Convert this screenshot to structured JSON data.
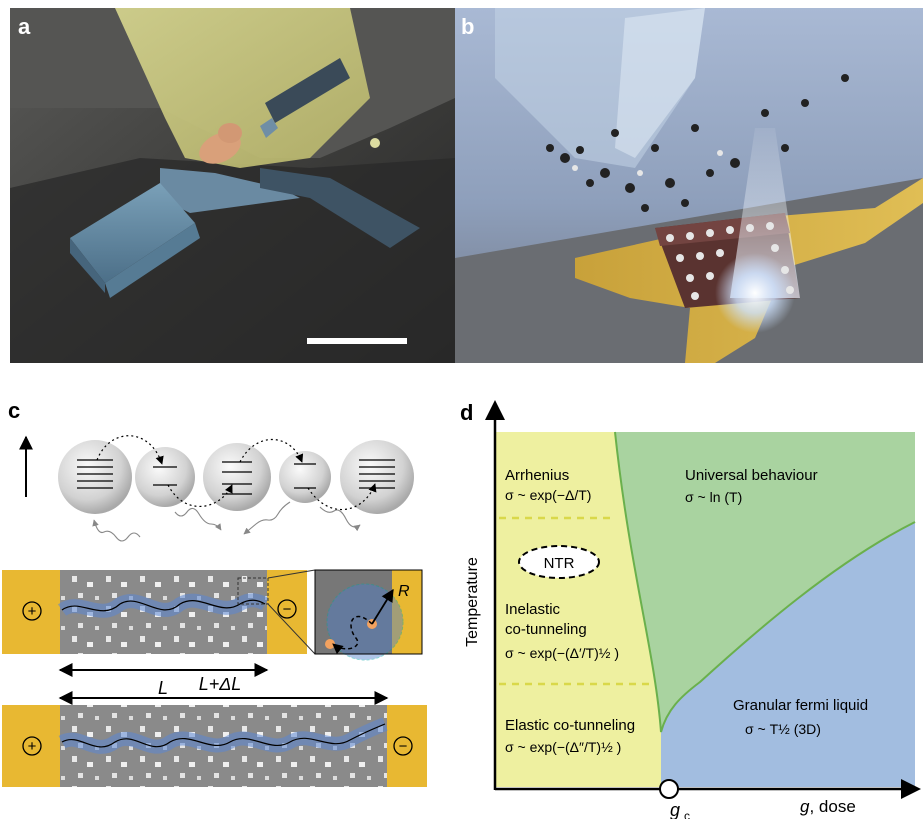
{
  "panels": {
    "a": {
      "label": "a"
    },
    "b": {
      "label": "b"
    },
    "c": {
      "label": "c",
      "plus": "+",
      "minus": "−",
      "length": "L",
      "length_extended": "L+ΔL",
      "radius": "R"
    },
    "d": {
      "label": "d",
      "ylabel": "Temperature",
      "xlabel": "g, dose",
      "critical": "g",
      "critical_sub": "c",
      "regions": {
        "arrhenius_title": "Arrhenius",
        "arrhenius_law": "σ ~ exp(−Δ/T)",
        "ntr": "NTR",
        "inelastic_title1": "Inelastic",
        "inelastic_title2": "co-tunneling",
        "inelastic_law": "σ ~ exp(−(Δ′/T)½ )",
        "elastic_title": "Elastic co-tunneling",
        "elastic_law": "σ ~ exp(−(Δ″/T)½ )",
        "universal_title": "Universal behaviour",
        "universal_law": "σ ~ ln (T)",
        "granular_title": "Granular fermi liquid",
        "granular_law": "σ ~ T½ (3D)"
      },
      "colors": {
        "insulating": "#eef0a0",
        "universal": "#a9d3a0",
        "fermi_liquid": "#a2bde0",
        "boundary": "#6ab04c",
        "dashed": "#d9d84a"
      }
    }
  }
}
